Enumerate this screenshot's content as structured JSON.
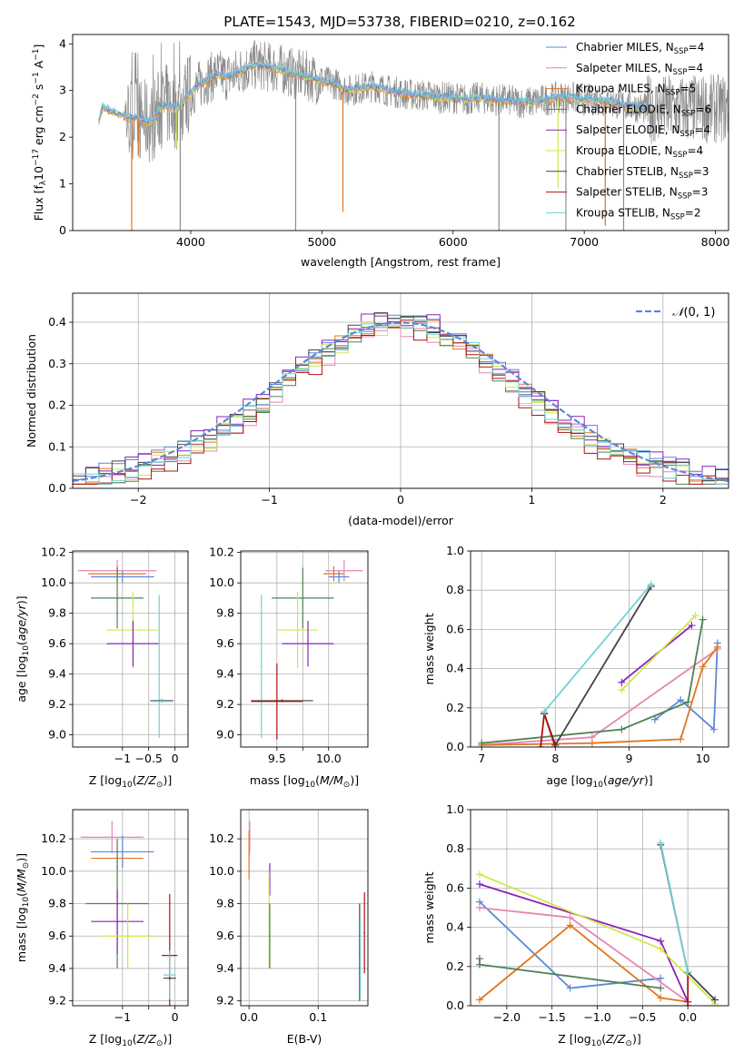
{
  "title": "PLATE=1543, MJD=53738, FIBERID=0210, z=0.162",
  "colors": {
    "chabrier_miles": "#5b87d9",
    "salpeter_miles": "#e685b3",
    "kroupa_miles": "#e0761e",
    "chabrier_elodie": "#4e8354",
    "salpeter_elodie": "#8b21b8",
    "kroupa_elodie": "#cfe84a",
    "chabrier_stelib": "#444444",
    "salpeter_stelib": "#b01010",
    "kroupa_stelib": "#73d0d6",
    "data_grey": "#8c8c8c",
    "normal": "#5b87d9"
  },
  "chart_data": [
    {
      "id": "spectrum",
      "type": "line",
      "xlabel": "wavelength [Angstrom, rest frame]",
      "ylabel": "Flux [f_λ 10^-17 erg cm^-2 s^-1 A^-1]",
      "xlim": [
        3100,
        8100
      ],
      "ylim": [
        0,
        4.2
      ],
      "xticks": [
        4000,
        5000,
        6000,
        7000,
        8000
      ],
      "yticks": [
        0,
        1,
        2,
        3,
        4
      ],
      "grid": false,
      "legend_position": "top-right",
      "legend": [
        {
          "key": "chabrier_miles",
          "label": "Chabrier MILES, N",
          "n": "4"
        },
        {
          "key": "salpeter_miles",
          "label": "Salpeter MILES, N",
          "n": "4"
        },
        {
          "key": "kroupa_miles",
          "label": "Kroupa MILES, N",
          "n": "5"
        },
        {
          "key": "chabrier_elodie",
          "label": "Chabrier ELODIE, N",
          "n": "6"
        },
        {
          "key": "salpeter_elodie",
          "label": "Salpeter ELODIE, N",
          "n": "4"
        },
        {
          "key": "kroupa_elodie",
          "label": "Kroupa ELODIE, N",
          "n": "4"
        },
        {
          "key": "chabrier_stelib",
          "label": "Chabrier STELIB, N",
          "n": "3"
        },
        {
          "key": "salpeter_stelib",
          "label": "Salpeter STELIB, N",
          "n": "3"
        },
        {
          "key": "kroupa_stelib",
          "label": "Kroupa STELIB, N",
          "n": "2"
        }
      ],
      "model_continuum": [
        [
          3300,
          2.35
        ],
        [
          3330,
          2.65
        ],
        [
          3400,
          2.55
        ],
        [
          3500,
          2.45
        ],
        [
          3600,
          2.4
        ],
        [
          3700,
          2.3
        ],
        [
          3750,
          2.55
        ],
        [
          3800,
          2.7
        ],
        [
          3900,
          2.6
        ],
        [
          3950,
          2.8
        ],
        [
          4000,
          2.95
        ],
        [
          4100,
          3.2
        ],
        [
          4200,
          3.35
        ],
        [
          4300,
          3.3
        ],
        [
          4400,
          3.45
        ],
        [
          4500,
          3.55
        ],
        [
          4600,
          3.5
        ],
        [
          4700,
          3.45
        ],
        [
          4800,
          3.35
        ],
        [
          4900,
          3.3
        ],
        [
          5000,
          3.2
        ],
        [
          5100,
          3.15
        ],
        [
          5200,
          3.0
        ],
        [
          5300,
          3.05
        ],
        [
          5400,
          3.1
        ],
        [
          5500,
          3.0
        ],
        [
          5600,
          2.95
        ],
        [
          5700,
          2.9
        ],
        [
          5800,
          2.9
        ],
        [
          5900,
          2.85
        ],
        [
          6000,
          2.85
        ],
        [
          6100,
          2.8
        ],
        [
          6200,
          2.85
        ],
        [
          6300,
          2.8
        ],
        [
          6400,
          2.8
        ],
        [
          6500,
          2.75
        ],
        [
          6600,
          2.75
        ],
        [
          6700,
          2.8
        ],
        [
          6800,
          2.85
        ],
        [
          6900,
          2.85
        ],
        [
          7000,
          2.8
        ],
        [
          7100,
          2.8
        ],
        [
          7200,
          2.75
        ],
        [
          7300,
          2.7
        ],
        [
          7400,
          2.65
        ],
        [
          7480,
          2.6
        ]
      ],
      "absorption_spikes": [
        {
          "x": 3550,
          "to": 0.0,
          "key": "kroupa_miles"
        },
        {
          "x": 3600,
          "to": 1.6,
          "key": "kroupa_miles"
        },
        {
          "x": 3890,
          "to": 1.8,
          "key": "kroupa_elodie"
        },
        {
          "x": 3920,
          "to": 0.0,
          "key": "data_grey"
        },
        {
          "x": 4800,
          "to": 0.0,
          "key": "data_grey"
        },
        {
          "x": 5160,
          "to": 0.4,
          "key": "kroupa_miles"
        },
        {
          "x": 6350,
          "to": 0.0,
          "key": "data_grey"
        },
        {
          "x": 6800,
          "to": 0.9,
          "key": "kroupa_elodie"
        },
        {
          "x": 6860,
          "to": 0.0,
          "key": "data_grey"
        },
        {
          "x": 7160,
          "to": 0.1,
          "key": "kroupa_miles"
        },
        {
          "x": 7300,
          "to": 0.0,
          "key": "data_grey"
        }
      ]
    },
    {
      "id": "residuals",
      "type": "line",
      "xlabel": "(data-model)/error",
      "ylabel": "Normed distribution",
      "xlim": [
        -2.5,
        2.5
      ],
      "ylim": [
        0,
        0.47
      ],
      "xticks": [
        -2,
        -1,
        0,
        1,
        2
      ],
      "yticks": [
        0.0,
        0.1,
        0.2,
        0.3,
        0.4
      ],
      "grid": true,
      "legend_position": "top-right",
      "series": [
        {
          "name": "N(0,1)",
          "style": "dashed"
        }
      ],
      "bin_width": 0.1,
      "hist_offsets": [
        0.01,
        -0.012,
        0.006,
        -0.008,
        0.014,
        -0.004,
        0.009,
        -0.015,
        0.002
      ]
    },
    {
      "id": "age-metal",
      "type": "scatter",
      "xlabel": "Z [log10(Z/Z⊙)]",
      "ylabel": "age [log10(age/yr)]",
      "xlim": [
        -1.95,
        0.25
      ],
      "ylim": [
        8.92,
        10.21
      ],
      "xticks": [
        -1,
        -0.5,
        0
      ],
      "xticklabels": [
        "−1",
        "−0.5",
        "0"
      ],
      "yticks": [
        9.0,
        9.2,
        9.4,
        9.6,
        9.8,
        10.0,
        10.2
      ],
      "grid": true,
      "crosses": [
        {
          "key": "salpeter_miles",
          "x": -1.1,
          "xerr": 0.75,
          "y": 10.08,
          "yerr": 0.07
        },
        {
          "key": "kroupa_miles",
          "x": -1.1,
          "xerr": 0.55,
          "y": 10.06,
          "yerr": 0.05
        },
        {
          "key": "chabrier_miles",
          "x": -1.0,
          "xerr": 0.6,
          "y": 10.04,
          "yerr": 0.04
        },
        {
          "key": "chabrier_elodie",
          "x": -1.1,
          "xerr": 0.5,
          "y": 9.9,
          "yerr": 0.2
        },
        {
          "key": "kroupa_elodie",
          "x": -0.8,
          "xerr": 0.5,
          "y": 9.69,
          "yerr": 0.25
        },
        {
          "key": "salpeter_elodie",
          "x": -0.8,
          "xerr": 0.5,
          "y": 9.6,
          "yerr": 0.15
        },
        {
          "key": "kroupa_stelib",
          "x": -0.3,
          "xerr": 0.01,
          "y": 9.45,
          "yerr": 0.47
        },
        {
          "key": "chabrier_stelib",
          "x": -0.25,
          "xerr": 0.22,
          "y": 9.225,
          "yerr": 0.01
        },
        {
          "key": "kroupa_stelib",
          "x": -0.25,
          "xerr": 0.2,
          "y": 9.22,
          "yerr": 0.01
        }
      ]
    },
    {
      "id": "age-mass",
      "type": "scatter",
      "xlabel": "mass [log10(M/M⊙)]",
      "ylabel": "",
      "xlim": [
        9.15,
        10.38
      ],
      "ylim": [
        8.92,
        10.21
      ],
      "xticks": [
        9.5,
        9.75,
        10.0
      ],
      "xticklabels": [
        "9.5",
        "",
        "10.0"
      ],
      "yticks": [
        9.0,
        9.2,
        9.4,
        9.6,
        9.8,
        10.0,
        10.2
      ],
      "grid": true,
      "crosses": [
        {
          "key": "salpeter_miles",
          "x": 10.15,
          "xerr": 0.18,
          "y": 10.08,
          "yerr": 0.07
        },
        {
          "key": "kroupa_miles",
          "x": 10.05,
          "xerr": 0.1,
          "y": 10.06,
          "yerr": 0.05
        },
        {
          "key": "chabrier_miles",
          "x": 10.1,
          "xerr": 0.1,
          "y": 10.04,
          "yerr": 0.04
        },
        {
          "key": "chabrier_elodie",
          "x": 9.75,
          "xerr": 0.3,
          "y": 9.9,
          "yerr": 0.2
        },
        {
          "key": "kroupa_elodie",
          "x": 9.7,
          "xerr": 0.2,
          "y": 9.69,
          "yerr": 0.25
        },
        {
          "key": "salpeter_elodie",
          "x": 9.8,
          "xerr": 0.25,
          "y": 9.6,
          "yerr": 0.15
        },
        {
          "key": "kroupa_stelib",
          "x": 9.35,
          "xerr": 0.01,
          "y": 9.45,
          "yerr": 0.47
        },
        {
          "key": "chabrier_stelib",
          "x": 9.55,
          "xerr": 0.3,
          "y": 9.225,
          "yerr": 0.01
        },
        {
          "key": "salpeter_stelib",
          "x": 9.5,
          "xerr": 0.25,
          "y": 9.22,
          "yerr": 0.25
        }
      ]
    },
    {
      "id": "mass-weight-age",
      "type": "line",
      "xlabel": "age [log10(age/yr)]",
      "ylabel": "mass weight",
      "xlim": [
        6.85,
        10.35
      ],
      "ylim": [
        0,
        1.0
      ],
      "xticks": [
        7,
        8,
        9,
        10
      ],
      "yticks": [
        0.0,
        0.2,
        0.4,
        0.6,
        0.8,
        1.0
      ],
      "grid": true,
      "series": [
        {
          "key": "chabrier_miles",
          "x": [
            9.35,
            9.7,
            10.15,
            10.2
          ],
          "y": [
            0.14,
            0.24,
            0.09,
            0.53
          ]
        },
        {
          "key": "salpeter_miles",
          "x": [
            7.0,
            8.5,
            10.2
          ],
          "y": [
            0.01,
            0.05,
            0.5
          ]
        },
        {
          "key": "kroupa_miles",
          "x": [
            7.0,
            8.5,
            9.7,
            10.0,
            10.2
          ],
          "y": [
            0.01,
            0.02,
            0.04,
            0.41,
            0.51
          ]
        },
        {
          "key": "chabrier_elodie",
          "x": [
            7.0,
            8.9,
            9.8,
            10.0
          ],
          "y": [
            0.02,
            0.09,
            0.23,
            0.65
          ]
        },
        {
          "key": "salpeter_elodie",
          "x": [
            8.9,
            9.85
          ],
          "y": [
            0.33,
            0.62
          ]
        },
        {
          "key": "kroupa_elodie",
          "x": [
            8.9,
            9.9
          ],
          "y": [
            0.29,
            0.67
          ]
        },
        {
          "key": "chabrier_stelib",
          "x": [
            7.85,
            8.0,
            9.3
          ],
          "y": [
            0.17,
            0.01,
            0.82
          ]
        },
        {
          "key": "salpeter_stelib",
          "x": [
            7.8,
            7.85,
            8.0
          ],
          "y": [
            0.0,
            0.17,
            0.0
          ]
        },
        {
          "key": "kroupa_stelib",
          "x": [
            7.85,
            9.3
          ],
          "y": [
            0.18,
            0.83
          ]
        }
      ]
    },
    {
      "id": "mass-metal",
      "type": "scatter",
      "xlabel": "Z [log10(Z/Z⊙)]",
      "ylabel": "mass [log10(M/M⊙)]",
      "xlim": [
        -1.95,
        0.25
      ],
      "ylim": [
        9.17,
        10.38
      ],
      "xticks": [
        -1,
        -0.5,
        0
      ],
      "xticklabels": [
        "−1",
        "",
        "0"
      ],
      "yticks": [
        9.2,
        9.4,
        9.6,
        9.8,
        10.0,
        10.2
      ],
      "grid": true,
      "crosses": [
        {
          "key": "salpeter_miles",
          "x": -1.2,
          "xerr": 0.6,
          "y": 10.21,
          "yerr": 0.1
        },
        {
          "key": "chabrier_miles",
          "x": -1.0,
          "xerr": 0.6,
          "y": 10.12,
          "yerr": 0.1
        },
        {
          "key": "kroupa_miles",
          "x": -1.1,
          "xerr": 0.5,
          "y": 10.08,
          "yerr": 0.07
        },
        {
          "key": "chabrier_elodie",
          "x": -1.1,
          "xerr": 0.6,
          "y": 9.8,
          "yerr": 0.4
        },
        {
          "key": "salpeter_elodie",
          "x": -1.1,
          "xerr": 0.5,
          "y": 9.69,
          "yerr": 0.2
        },
        {
          "key": "kroupa_elodie",
          "x": -0.9,
          "xerr": 0.5,
          "y": 9.6,
          "yerr": 0.2
        },
        {
          "key": "salpeter_stelib",
          "x": -0.1,
          "xerr": 0.15,
          "y": 9.48,
          "yerr": 0.38
        },
        {
          "key": "kroupa_stelib",
          "x": -0.1,
          "xerr": 0.12,
          "y": 9.36,
          "yerr": 0.15
        },
        {
          "key": "chabrier_stelib",
          "x": -0.1,
          "xerr": 0.12,
          "y": 9.34,
          "yerr": 0.01
        }
      ]
    },
    {
      "id": "mass-ebv",
      "type": "scatter",
      "xlabel": "E(B-V)",
      "ylabel": "",
      "xlim": [
        -0.012,
        0.172
      ],
      "ylim": [
        9.17,
        10.38
      ],
      "xticks": [
        0.0,
        0.1
      ],
      "xticklabels": [
        "0.0",
        "0.1"
      ],
      "yticks": [
        9.2,
        9.4,
        9.6,
        9.8,
        10.0,
        10.2
      ],
      "grid": true,
      "crosses": [
        {
          "key": "salpeter_miles",
          "x": 0.001,
          "xerr": 0.001,
          "y": 10.21,
          "yerr": 0.1
        },
        {
          "key": "kroupa_miles",
          "x": 0.0,
          "xerr": 0.001,
          "y": 10.1,
          "yerr": 0.15
        },
        {
          "key": "salpeter_elodie",
          "x": 0.03,
          "xerr": 0.001,
          "y": 9.95,
          "yerr": 0.1
        },
        {
          "key": "kroupa_elodie",
          "x": 0.029,
          "xerr": 0.001,
          "y": 9.7,
          "yerr": 0.3
        },
        {
          "key": "chabrier_elodie",
          "x": 0.03,
          "xerr": 0.001,
          "y": 9.6,
          "yerr": 0.2
        },
        {
          "key": "chabrier_stelib",
          "x": 0.16,
          "xerr": 0.001,
          "y": 9.5,
          "yerr": 0.3
        },
        {
          "key": "kroupa_stelib",
          "x": 0.161,
          "xerr": 0.001,
          "y": 9.45,
          "yerr": 0.25
        },
        {
          "key": "salpeter_stelib",
          "x": 0.167,
          "xerr": 0.001,
          "y": 9.62,
          "yerr": 0.25
        }
      ]
    },
    {
      "id": "mass-weight-metal",
      "type": "line",
      "xlabel": "Z [log10(Z/Z⊙)]",
      "ylabel": "mass weight",
      "xlim": [
        -2.4,
        0.45
      ],
      "ylim": [
        0,
        1.0
      ],
      "xticks": [
        -2.0,
        -1.5,
        -1.0,
        -0.5,
        0.0
      ],
      "xticklabels": [
        "−2.0",
        "−1.5",
        "−1.0",
        "−0.5",
        "0.0"
      ],
      "yticks": [
        0.0,
        0.2,
        0.4,
        0.6,
        0.8,
        1.0
      ],
      "grid": true,
      "series": [
        {
          "key": "chabrier_miles",
          "x": [
            -2.3,
            -1.3,
            -0.3
          ],
          "y": [
            0.53,
            0.09,
            0.14
          ]
        },
        {
          "key": "salpeter_miles",
          "x": [
            -2.3,
            -1.3,
            0.0
          ],
          "y": [
            0.5,
            0.45,
            0.02
          ]
        },
        {
          "key": "kroupa_miles",
          "x": [
            -2.3,
            -1.3,
            -0.3,
            0.0
          ],
          "y": [
            0.03,
            0.41,
            0.04,
            0.02
          ]
        },
        {
          "key": "chabrier_elodie",
          "x": [
            -2.3,
            -2.3,
            -0.3
          ],
          "y": [
            0.24,
            0.21,
            0.09
          ]
        },
        {
          "key": "salpeter_elodie",
          "x": [
            -2.3,
            -0.3,
            0.0
          ],
          "y": [
            0.62,
            0.33,
            0.02
          ]
        },
        {
          "key": "kroupa_elodie",
          "x": [
            -2.3,
            -0.3,
            0.3
          ],
          "y": [
            0.67,
            0.29,
            0.01
          ]
        },
        {
          "key": "chabrier_stelib",
          "x": [
            -0.3,
            0.0,
            0.3
          ],
          "y": [
            0.82,
            0.17,
            0.03
          ]
        },
        {
          "key": "salpeter_stelib",
          "x": [
            0.0,
            0.0
          ],
          "y": [
            0.17,
            0.0
          ]
        },
        {
          "key": "kroupa_stelib",
          "x": [
            -0.3,
            0.0
          ],
          "y": [
            0.83,
            0.17
          ]
        }
      ]
    }
  ]
}
